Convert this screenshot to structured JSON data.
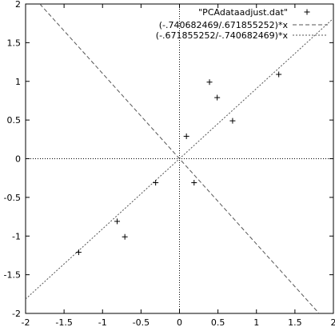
{
  "chart_data": {
    "type": "scatter",
    "title": "",
    "xlabel": "",
    "ylabel": "",
    "xlim": [
      -2,
      2
    ],
    "ylim": [
      -2,
      2
    ],
    "xticks": [
      -2,
      -1.5,
      -1,
      -0.5,
      0,
      0.5,
      1,
      1.5,
      2
    ],
    "yticks": [
      -2,
      -1.5,
      -1,
      -0.5,
      0,
      0.5,
      1,
      1.5,
      2
    ],
    "xtick_labels": [
      "-2",
      "-1.5",
      "-1",
      "-0.5",
      "0",
      "0.5",
      "1",
      "1.5",
      "2"
    ],
    "ytick_labels": [
      "-2",
      "-1.5",
      "-1",
      "-0.5",
      "0",
      "0.5",
      "1",
      "1.5",
      "2"
    ],
    "grid": false,
    "zero_axes": true,
    "legend_position": "top-right",
    "series": [
      {
        "name": "\"PCAdataadjust.dat\"",
        "kind": "points",
        "marker": "plus",
        "color": "#000000",
        "x": [
          0.69,
          -1.31,
          0.39,
          0.09,
          1.29,
          0.49,
          0.19,
          -0.81,
          -0.31,
          -0.71
        ],
        "y": [
          0.49,
          -1.21,
          0.99,
          0.29,
          1.09,
          0.79,
          -0.31,
          -0.81,
          -0.31,
          -1.01
        ]
      },
      {
        "name": "(-.740682469/.671855252)*x",
        "kind": "line",
        "slope": -1.1024,
        "color": "#555555",
        "dash": "dashed"
      },
      {
        "name": "(-.671855252/-.740682469)*x",
        "kind": "line",
        "slope": 0.9071,
        "color": "#555555",
        "dash": "dotted"
      }
    ]
  }
}
